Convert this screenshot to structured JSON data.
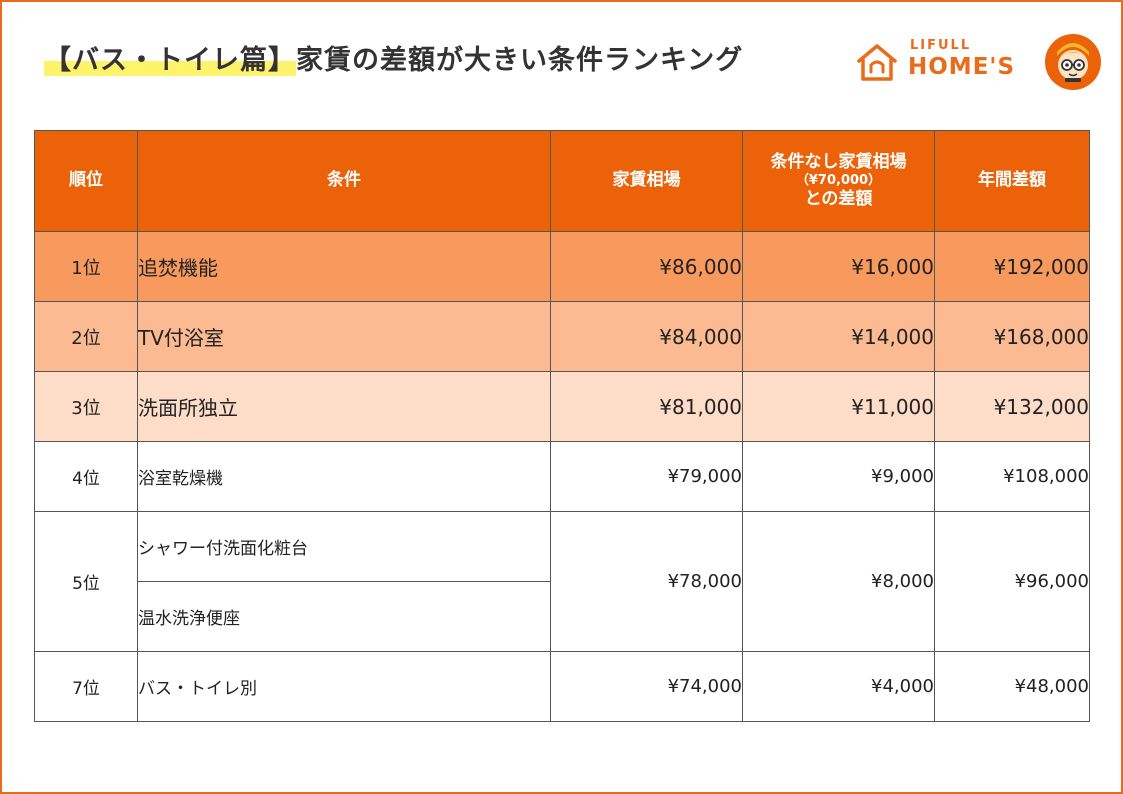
{
  "header": {
    "title_tag": "【バス・トイレ篇】",
    "title_rest": "家賃の差額が大きい条件ランキング"
  },
  "logo": {
    "small": "LIFULL",
    "big": "HOME'S",
    "icon": "house-icon",
    "mascot": "mascot-icon"
  },
  "colors": {
    "accent": "#ec6209",
    "rank1": "#f89a5e",
    "rank2": "#fbba92",
    "rank3": "#fddcc8"
  },
  "table": {
    "headers": {
      "rank": "順位",
      "condition": "条件",
      "rent": "家賃相場",
      "diff_line1": "条件なし家賃相場",
      "diff_line2": "（¥70,000）",
      "diff_line3": "との差額",
      "annual": "年間差額"
    },
    "rows": [
      {
        "rank": "1位",
        "condition": "追焚機能",
        "rent": "¥86,000",
        "diff": "¥16,000",
        "annual": "¥192,000"
      },
      {
        "rank": "2位",
        "condition": "TV付浴室",
        "rent": "¥84,000",
        "diff": "¥14,000",
        "annual": "¥168,000"
      },
      {
        "rank": "3位",
        "condition": "洗面所独立",
        "rent": "¥81,000",
        "diff": "¥11,000",
        "annual": "¥132,000"
      },
      {
        "rank": "4位",
        "condition": "浴室乾燥機",
        "rent": "¥79,000",
        "diff": "¥9,000",
        "annual": "¥108,000"
      },
      {
        "rank": "5位",
        "condition": "シャワー付洗面化粧台",
        "condition2": "温水洗浄便座",
        "rent": "¥78,000",
        "diff": "¥8,000",
        "annual": "¥96,000"
      },
      {
        "rank": "7位",
        "condition": "バス・トイレ別",
        "rent": "¥74,000",
        "diff": "¥4,000",
        "annual": "¥48,000"
      }
    ]
  }
}
